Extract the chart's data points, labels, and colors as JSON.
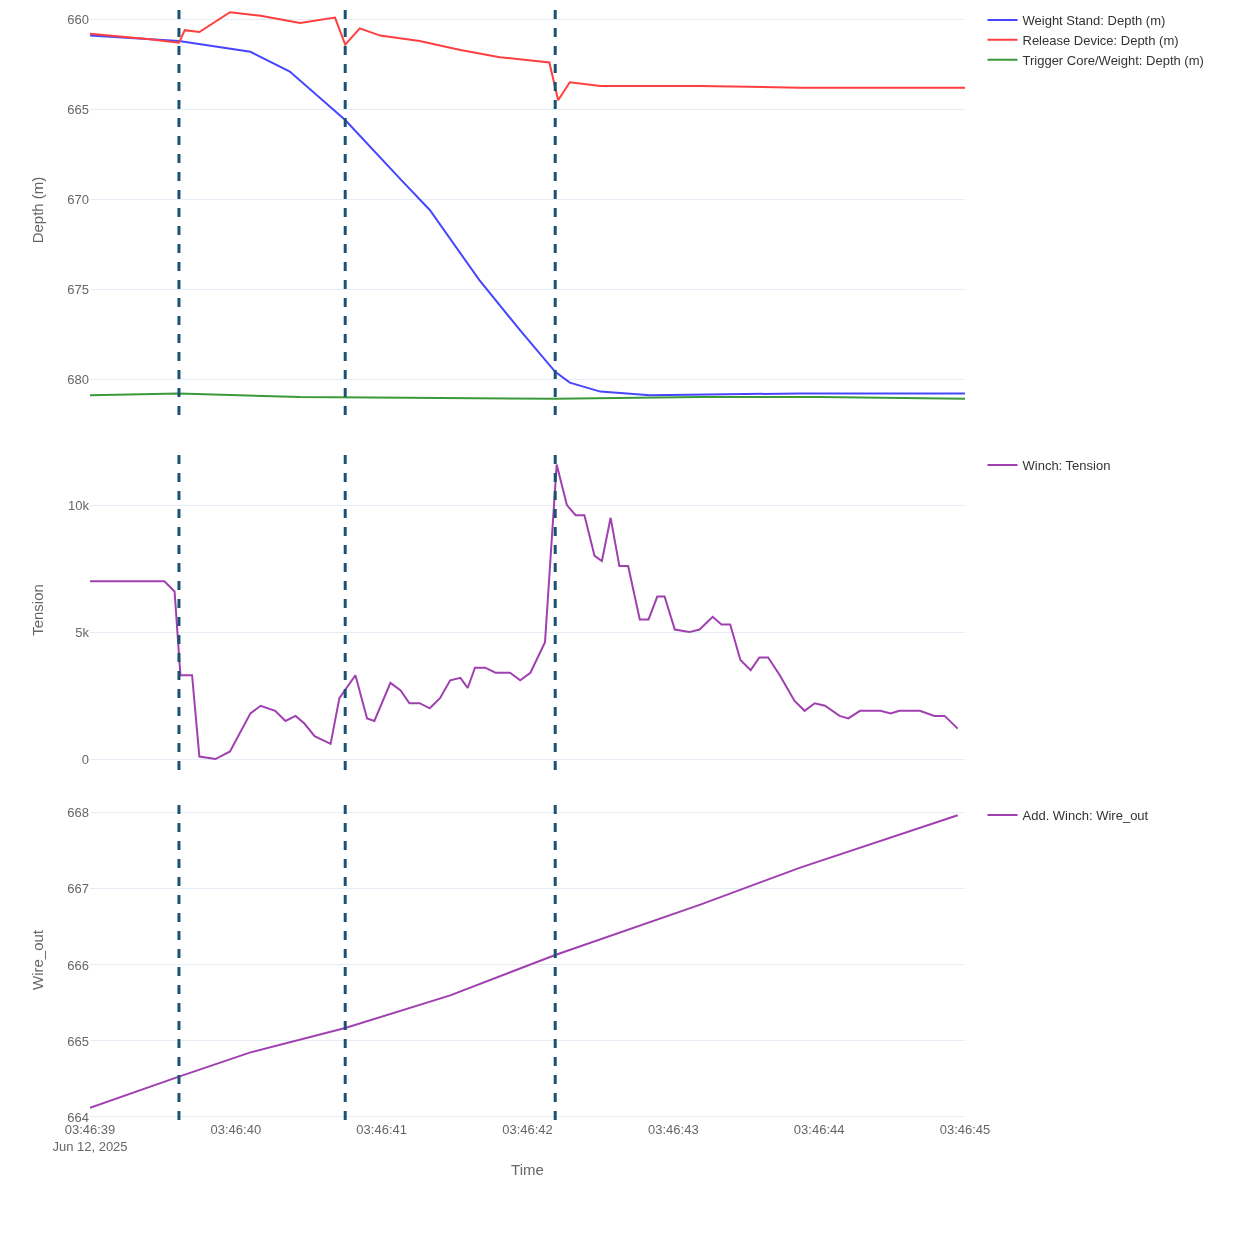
{
  "chart_data": [
    {
      "type": "line",
      "ylabel": "Depth (m)",
      "legend": "top right",
      "grid": "y",
      "tick_labels": "y",
      "xlim": [
        "2025-06-12T03:46:39",
        "2025-06-12T03:46:45"
      ],
      "ylim": [
        682,
        659.2
      ],
      "yticks": [
        660,
        665,
        670,
        675,
        680
      ],
      "ref_lines": [
        {
          "axis": "x",
          "value": "2025-06-12T03:46:39.61",
          "color": "#1a5276",
          "line_style": "dashed"
        },
        {
          "axis": "x",
          "value": "2025-06-12T03:46:40.75",
          "color": "#1a5276",
          "line_style": "dashed"
        },
        {
          "axis": "x",
          "value": "2025-06-12T03:46:42.19",
          "color": "#1a5276",
          "line_style": "dashed"
        }
      ],
      "series": [
        {
          "name": "Weight Stand: Depth (m)",
          "color": "#4646ff",
          "x": [
            "2025-06-12T03:46:39.00",
            "2025-06-12T03:46:39.61",
            "2025-06-12T03:46:40.10",
            "2025-06-12T03:46:40.37",
            "2025-06-12T03:46:40.75",
            "2025-06-12T03:46:41.13",
            "2025-06-12T03:46:41.33",
            "2025-06-12T03:46:41.67",
            "2025-06-12T03:46:41.95",
            "2025-06-12T03:46:42.19",
            "2025-06-12T03:46:42.29",
            "2025-06-12T03:46:42.50",
            "2025-06-12T03:46:42.84",
            "2025-06-12T03:46:43.87",
            "2025-06-12T03:46:45.00"
          ],
          "values": [
            660.9,
            661.2,
            661.8,
            662.9,
            665.6,
            668.9,
            670.6,
            674.5,
            677.3,
            679.6,
            680.2,
            680.7,
            680.9,
            680.8,
            680.8
          ]
        },
        {
          "name": "Release Device: Depth (m)",
          "color": "#ff3f3f",
          "x": [
            "2025-06-12T03:46:39.00",
            "2025-06-12T03:46:39.41",
            "2025-06-12T03:46:39.61",
            "2025-06-12T03:46:39.65",
            "2025-06-12T03:46:39.75",
            "2025-06-12T03:46:39.96",
            "2025-06-12T03:46:40.17",
            "2025-06-12T03:46:40.44",
            "2025-06-12T03:46:40.68",
            "2025-06-12T03:46:40.75",
            "2025-06-12T03:46:40.85",
            "2025-06-12T03:46:40.99",
            "2025-06-12T03:46:41.26",
            "2025-06-12T03:46:41.54",
            "2025-06-12T03:46:41.81",
            "2025-06-12T03:46:42.15",
            "2025-06-12T03:46:42.21",
            "2025-06-12T03:46:42.29",
            "2025-06-12T03:46:42.50",
            "2025-06-12T03:46:43.18",
            "2025-06-12T03:46:43.87",
            "2025-06-12T03:46:45.00"
          ],
          "values": [
            660.8,
            661.1,
            661.3,
            660.6,
            660.7,
            659.6,
            659.8,
            660.2,
            659.9,
            661.4,
            660.5,
            660.9,
            661.2,
            661.7,
            662.1,
            662.4,
            664.5,
            663.5,
            663.7,
            663.7,
            663.8,
            663.8
          ]
        },
        {
          "name": "Trigger Core/Weight: Depth (m)",
          "color": "#3a9a3a",
          "x": [
            "2025-06-12T03:46:39.00",
            "2025-06-12T03:46:39.61",
            "2025-06-12T03:46:40.44",
            "2025-06-12T03:46:42.19",
            "2025-06-12T03:46:43.18",
            "2025-06-12T03:46:44.00",
            "2025-06-12T03:46:45.00"
          ],
          "values": [
            680.9,
            680.8,
            681.0,
            681.1,
            681.0,
            681.0,
            681.1
          ]
        }
      ]
    },
    {
      "type": "line",
      "ylabel": "Tension",
      "legend": "top right",
      "grid": "y",
      "tick_labels": "y",
      "xlim": [
        "2025-06-12T03:46:39",
        "2025-06-12T03:46:45"
      ],
      "ylim": [
        -430,
        12170
      ],
      "yticks": [
        0,
        {
          "value": 5000,
          "label": "5k"
        },
        {
          "value": 10000,
          "label": "10k"
        }
      ],
      "ref_lines": [
        {
          "axis": "x",
          "value": "2025-06-12T03:46:39.61",
          "color": "#1a5276",
          "line_style": "dashed"
        },
        {
          "axis": "x",
          "value": "2025-06-12T03:46:40.75",
          "color": "#1a5276",
          "line_style": "dashed"
        },
        {
          "axis": "x",
          "value": "2025-06-12T03:46:42.19",
          "color": "#1a5276",
          "line_style": "dashed"
        }
      ],
      "series": [
        {
          "name": "Winch: Tension",
          "color": "#a040b0",
          "x": [
            "2025-06-12T03:46:39.00",
            "2025-06-12T03:46:39.51",
            "2025-06-12T03:46:39.58",
            "2025-06-12T03:46:39.62",
            "2025-06-12T03:46:39.70",
            "2025-06-12T03:46:39.75",
            "2025-06-12T03:46:39.86",
            "2025-06-12T03:46:39.96",
            "2025-06-12T03:46:40.10",
            "2025-06-12T03:46:40.17",
            "2025-06-12T03:46:40.27",
            "2025-06-12T03:46:40.34",
            "2025-06-12T03:46:40.41",
            "2025-06-12T03:46:40.47",
            "2025-06-12T03:46:40.54",
            "2025-06-12T03:46:40.65",
            "2025-06-12T03:46:40.71",
            "2025-06-12T03:46:40.82",
            "2025-06-12T03:46:40.90",
            "2025-06-12T03:46:40.95",
            "2025-06-12T03:46:41.06",
            "2025-06-12T03:46:41.13",
            "2025-06-12T03:46:41.19",
            "2025-06-12T03:46:41.26",
            "2025-06-12T03:46:41.33",
            "2025-06-12T03:46:41.40",
            "2025-06-12T03:46:41.47",
            "2025-06-12T03:46:41.54",
            "2025-06-12T03:46:41.59",
            "2025-06-12T03:46:41.64",
            "2025-06-12T03:46:41.71",
            "2025-06-12T03:46:41.78",
            "2025-06-12T03:46:41.88",
            "2025-06-12T03:46:41.95",
            "2025-06-12T03:46:42.02",
            "2025-06-12T03:46:42.12",
            "2025-06-12T03:46:42.20",
            "2025-06-12T03:46:42.27",
            "2025-06-12T03:46:42.33",
            "2025-06-12T03:46:42.39",
            "2025-06-12T03:46:42.46",
            "2025-06-12T03:46:42.51",
            "2025-06-12T03:46:42.57",
            "2025-06-12T03:46:42.63",
            "2025-06-12T03:46:42.69",
            "2025-06-12T03:46:42.77",
            "2025-06-12T03:46:42.83",
            "2025-06-12T03:46:42.89",
            "2025-06-12T03:46:42.94",
            "2025-06-12T03:46:43.01",
            "2025-06-12T03:46:43.11",
            "2025-06-12T03:46:43.18",
            "2025-06-12T03:46:43.27",
            "2025-06-12T03:46:43.33",
            "2025-06-12T03:46:43.39",
            "2025-06-12T03:46:43.46",
            "2025-06-12T03:46:43.53",
            "2025-06-12T03:46:43.59",
            "2025-06-12T03:46:43.65",
            "2025-06-12T03:46:43.73",
            "2025-06-12T03:46:43.83",
            "2025-06-12T03:46:43.90",
            "2025-06-12T03:46:43.97",
            "2025-06-12T03:46:44.04",
            "2025-06-12T03:46:44.14",
            "2025-06-12T03:46:44.20",
            "2025-06-12T03:46:44.28",
            "2025-06-12T03:46:44.42",
            "2025-06-12T03:46:44.49",
            "2025-06-12T03:46:44.55",
            "2025-06-12T03:46:44.69",
            "2025-06-12T03:46:44.79",
            "2025-06-12T03:46:44.86",
            "2025-06-12T03:46:44.95"
          ],
          "values": [
            7000,
            7000,
            6600,
            3300,
            3300,
            100,
            0,
            300,
            1800,
            2100,
            1900,
            1500,
            1700,
            1400,
            900,
            600,
            2400,
            3300,
            1600,
            1500,
            3000,
            2700,
            2200,
            2200,
            2000,
            2400,
            3100,
            3200,
            2800,
            3600,
            3600,
            3400,
            3400,
            3100,
            3400,
            4600,
            11600,
            10000,
            9600,
            9600,
            8000,
            7800,
            9500,
            7600,
            7600,
            5500,
            5500,
            6400,
            6400,
            5100,
            5000,
            5100,
            5600,
            5300,
            5300,
            3900,
            3500,
            4000,
            4000,
            3300,
            2300,
            1900,
            2200,
            2100,
            1700,
            1600,
            1900,
            1900,
            1800,
            1900,
            1900,
            1700,
            1700,
            1200
          ]
        }
      ]
    },
    {
      "type": "line",
      "ylabel": "Wire_out",
      "xlabel": "Time",
      "legend": "top right",
      "grid": "y",
      "xlim": [
        "2025-06-12T03:46:39",
        "2025-06-12T03:46:45"
      ],
      "xticks": [
        {
          "value": "2025-06-12T03:46:39",
          "label": "03:46:39\nJun 12, 2025"
        },
        {
          "value": "2025-06-12T03:46:40",
          "label": "03:46:40"
        },
        {
          "value": "2025-06-12T03:46:41",
          "label": "03:46:41"
        },
        {
          "value": "2025-06-12T03:46:42",
          "label": "03:46:42"
        },
        {
          "value": "2025-06-12T03:46:43",
          "label": "03:46:43"
        },
        {
          "value": "2025-06-12T03:46:44",
          "label": "03:46:44"
        },
        {
          "value": "2025-06-12T03:46:45",
          "label": "03:46:45"
        }
      ],
      "ylim": [
        663.96,
        668.17
      ],
      "yticks": [
        664,
        665,
        666,
        667,
        668
      ],
      "ref_lines": [
        {
          "axis": "x",
          "value": "2025-06-12T03:46:39.61",
          "color": "#1a5276",
          "line_style": "dashed"
        },
        {
          "axis": "x",
          "value": "2025-06-12T03:46:40.75",
          "color": "#1a5276",
          "line_style": "dashed"
        },
        {
          "axis": "x",
          "value": "2025-06-12T03:46:42.19",
          "color": "#1a5276",
          "line_style": "dashed"
        }
      ],
      "series": [
        {
          "name": "Add. Winch: Wire_out",
          "color": "#a040b0",
          "x": [
            "2025-06-12T03:46:39.00",
            "2025-06-12T03:46:39.61",
            "2025-06-12T03:46:40.10",
            "2025-06-12T03:46:40.75",
            "2025-06-12T03:46:41.47",
            "2025-06-12T03:46:42.19",
            "2025-06-12T03:46:43.18",
            "2025-06-12T03:46:43.87",
            "2025-06-12T03:46:44.95"
          ],
          "values": [
            664.12,
            664.53,
            664.85,
            665.17,
            665.6,
            666.13,
            666.79,
            667.28,
            667.97
          ]
        }
      ]
    }
  ]
}
